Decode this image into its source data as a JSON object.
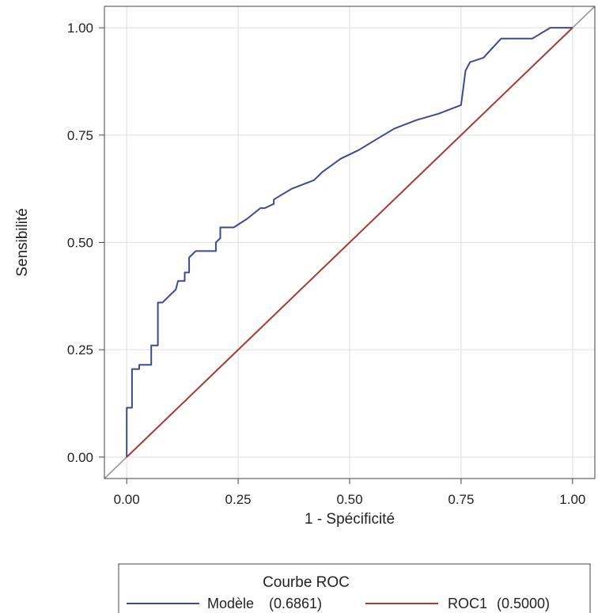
{
  "chart_data": {
    "type": "line",
    "xlabel": "1 - Spécificité",
    "ylabel": "Sensibilité",
    "xlim": [
      -0.05,
      1.05
    ],
    "ylim": [
      -0.05,
      1.05
    ],
    "x_ticks": [
      0,
      0.25,
      0.5,
      0.75,
      1
    ],
    "x_tick_labels": [
      "0.00",
      "0.25",
      "0.50",
      "0.75",
      "1.00"
    ],
    "y_ticks": [
      0,
      0.25,
      0.5,
      0.75,
      1
    ],
    "y_tick_labels": [
      "0.00",
      "0.25",
      "0.50",
      "0.75",
      "1.00"
    ],
    "grid": true,
    "reference_diagonal": true,
    "legend": {
      "title": "Courbe ROC",
      "placement": "bottom"
    },
    "series": [
      {
        "name": "Modèle",
        "legend_label": "Modèle",
        "auc": "(0.6861)",
        "color": "#3d4a8f",
        "x": [
          0,
          0,
          0.012,
          0.012,
          0.028,
          0.028,
          0.055,
          0.055,
          0.07,
          0.07,
          0.08,
          0.09,
          0.1,
          0.11,
          0.115,
          0.115,
          0.13,
          0.13,
          0.14,
          0.14,
          0.155,
          0.155,
          0.2,
          0.2,
          0.21,
          0.21,
          0.24,
          0.27,
          0.3,
          0.31,
          0.33,
          0.33,
          0.37,
          0.42,
          0.44,
          0.48,
          0.52,
          0.56,
          0.6,
          0.65,
          0.7,
          0.75,
          0.76,
          0.77,
          0.8,
          0.84,
          0.91,
          0.95,
          1.0
        ],
        "y": [
          0,
          0.115,
          0.115,
          0.205,
          0.205,
          0.215,
          0.215,
          0.26,
          0.26,
          0.36,
          0.36,
          0.37,
          0.38,
          0.39,
          0.41,
          0.41,
          0.41,
          0.43,
          0.43,
          0.465,
          0.48,
          0.48,
          0.48,
          0.5,
          0.51,
          0.535,
          0.535,
          0.555,
          0.58,
          0.58,
          0.59,
          0.6,
          0.625,
          0.645,
          0.665,
          0.695,
          0.715,
          0.74,
          0.765,
          0.785,
          0.8,
          0.82,
          0.9,
          0.92,
          0.93,
          0.975,
          0.975,
          1.0,
          1.0
        ]
      },
      {
        "name": "ROC1",
        "legend_label": "ROC1",
        "auc": "(0.5000)",
        "color": "#a83c32",
        "x": [
          0,
          1
        ],
        "y": [
          0,
          1
        ]
      }
    ]
  }
}
